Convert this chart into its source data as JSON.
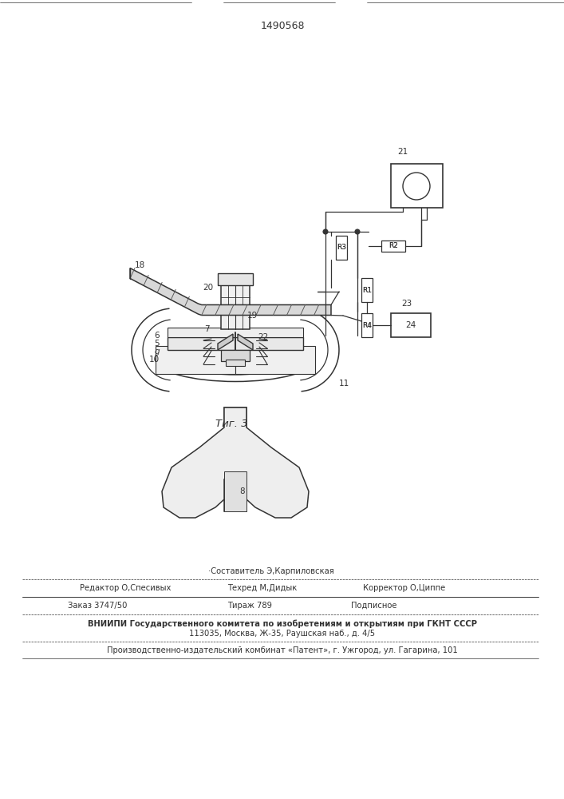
{
  "patent_number": "1490568",
  "fig_caption": "Τиг. 3",
  "bg_color": "#ffffff",
  "lc": "#333333",
  "footer": {
    "sestavitel": "·Составитель Э,Карпиловская",
    "redaktor": "Редактор О,Спесивых",
    "tehred": "Техред М,Дидык",
    "korrektor": "Корректор О,Циппе",
    "zakaz": "Заказ 3747/50",
    "tirazh": "Тираж 789",
    "podpisnoe": "Подписное",
    "vniipи": "ВНИИПИ Государственного комитета по изобретениям и открытиям при ГКНТ СССР",
    "address": "113035, Москва, Ж-35, Раушская наб., д. 4/5",
    "patent_plant": "Производственно-издательский комбинат «Патент», г. Ужгород, ул. Гагарина, 101"
  }
}
